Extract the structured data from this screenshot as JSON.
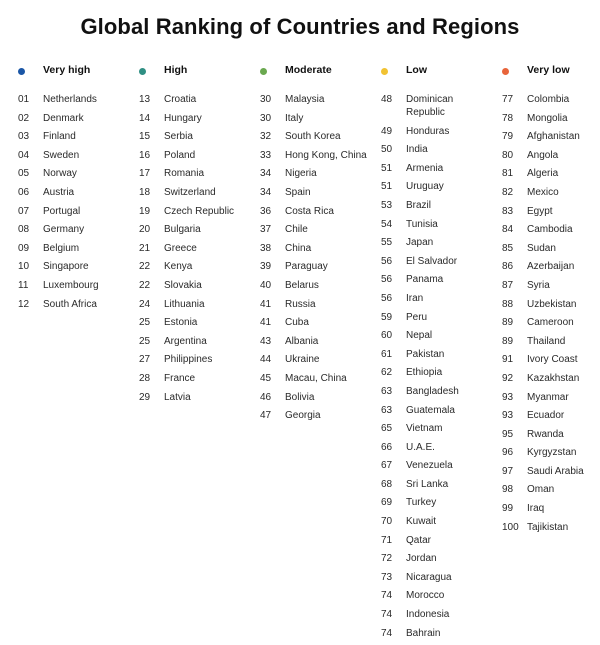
{
  "title": "Global Ranking of Countries and Regions",
  "columns": [
    {
      "label": "Very high",
      "color": "#1a56a6",
      "rows": [
        {
          "rank": "01",
          "name": "Netherlands"
        },
        {
          "rank": "02",
          "name": "Denmark"
        },
        {
          "rank": "03",
          "name": "Finland"
        },
        {
          "rank": "04",
          "name": "Sweden"
        },
        {
          "rank": "05",
          "name": "Norway"
        },
        {
          "rank": "06",
          "name": "Austria"
        },
        {
          "rank": "07",
          "name": "Portugal"
        },
        {
          "rank": "08",
          "name": "Germany"
        },
        {
          "rank": "09",
          "name": "Belgium"
        },
        {
          "rank": "10",
          "name": "Singapore"
        },
        {
          "rank": "11",
          "name": "Luxembourg"
        },
        {
          "rank": "12",
          "name": "South Africa"
        }
      ]
    },
    {
      "label": "High",
      "color": "#2f8f83",
      "rows": [
        {
          "rank": "13",
          "name": "Croatia"
        },
        {
          "rank": "14",
          "name": "Hungary"
        },
        {
          "rank": "15",
          "name": "Serbia"
        },
        {
          "rank": "16",
          "name": "Poland"
        },
        {
          "rank": "17",
          "name": "Romania"
        },
        {
          "rank": "18",
          "name": "Switzerland"
        },
        {
          "rank": "19",
          "name": "Czech Republic"
        },
        {
          "rank": "20",
          "name": "Bulgaria"
        },
        {
          "rank": "21",
          "name": "Greece"
        },
        {
          "rank": "22",
          "name": "Kenya"
        },
        {
          "rank": "22",
          "name": "Slovakia"
        },
        {
          "rank": "24",
          "name": "Lithuania"
        },
        {
          "rank": "25",
          "name": "Estonia"
        },
        {
          "rank": "25",
          "name": "Argentina"
        },
        {
          "rank": "27",
          "name": "Philippines"
        },
        {
          "rank": "28",
          "name": "France"
        },
        {
          "rank": "29",
          "name": "Latvia"
        }
      ]
    },
    {
      "label": "Moderate",
      "color": "#6aa84f",
      "rows": [
        {
          "rank": "30",
          "name": "Malaysia"
        },
        {
          "rank": "30",
          "name": "Italy"
        },
        {
          "rank": "32",
          "name": "South Korea"
        },
        {
          "rank": "33",
          "name": "Hong Kong, China"
        },
        {
          "rank": "34",
          "name": "Nigeria"
        },
        {
          "rank": "34",
          "name": "Spain"
        },
        {
          "rank": "36",
          "name": "Costa Rica"
        },
        {
          "rank": "37",
          "name": "Chile"
        },
        {
          "rank": "38",
          "name": "China"
        },
        {
          "rank": "39",
          "name": "Paraguay"
        },
        {
          "rank": "40",
          "name": "Belarus"
        },
        {
          "rank": "41",
          "name": "Russia"
        },
        {
          "rank": "41",
          "name": "Cuba"
        },
        {
          "rank": "43",
          "name": "Albania"
        },
        {
          "rank": "44",
          "name": "Ukraine"
        },
        {
          "rank": "45",
          "name": "Macau, China"
        },
        {
          "rank": "46",
          "name": "Bolivia"
        },
        {
          "rank": "47",
          "name": "Georgia"
        }
      ]
    },
    {
      "label": "Low",
      "color": "#f1c232",
      "rows": [
        {
          "rank": "48",
          "name": "Dominican Republic"
        },
        {
          "rank": "49",
          "name": "Honduras"
        },
        {
          "rank": "50",
          "name": "India"
        },
        {
          "rank": "51",
          "name": "Armenia"
        },
        {
          "rank": "51",
          "name": "Uruguay"
        },
        {
          "rank": "53",
          "name": "Brazil"
        },
        {
          "rank": "54",
          "name": "Tunisia"
        },
        {
          "rank": "55",
          "name": "Japan"
        },
        {
          "rank": "56",
          "name": "El Salvador"
        },
        {
          "rank": "56",
          "name": "Panama"
        },
        {
          "rank": "56",
          "name": "Iran"
        },
        {
          "rank": "59",
          "name": "Peru"
        },
        {
          "rank": "60",
          "name": "Nepal"
        },
        {
          "rank": "61",
          "name": "Pakistan"
        },
        {
          "rank": "62",
          "name": "Ethiopia"
        },
        {
          "rank": "63",
          "name": "Bangladesh"
        },
        {
          "rank": "63",
          "name": "Guatemala"
        },
        {
          "rank": "65",
          "name": "Vietnam"
        },
        {
          "rank": "66",
          "name": "U.A.E."
        },
        {
          "rank": "67",
          "name": "Venezuela"
        },
        {
          "rank": "68",
          "name": "Sri Lanka"
        },
        {
          "rank": "69",
          "name": "Turkey"
        },
        {
          "rank": "70",
          "name": "Kuwait"
        },
        {
          "rank": "71",
          "name": "Qatar"
        },
        {
          "rank": "72",
          "name": "Jordan"
        },
        {
          "rank": "73",
          "name": "Nicaragua"
        },
        {
          "rank": "74",
          "name": "Morocco"
        },
        {
          "rank": "74",
          "name": "Indonesia"
        },
        {
          "rank": "74",
          "name": "Bahrain"
        }
      ]
    },
    {
      "label": "Very low",
      "color": "#e8643a",
      "rows": [
        {
          "rank": "77",
          "name": "Colombia"
        },
        {
          "rank": "78",
          "name": "Mongolia"
        },
        {
          "rank": "79",
          "name": "Afghanistan"
        },
        {
          "rank": "80",
          "name": "Angola"
        },
        {
          "rank": "81",
          "name": "Algeria"
        },
        {
          "rank": "82",
          "name": "Mexico"
        },
        {
          "rank": "83",
          "name": "Egypt"
        },
        {
          "rank": "84",
          "name": "Cambodia"
        },
        {
          "rank": "85",
          "name": "Sudan"
        },
        {
          "rank": "86",
          "name": "Azerbaijan"
        },
        {
          "rank": "87",
          "name": "Syria"
        },
        {
          "rank": "88",
          "name": "Uzbekistan"
        },
        {
          "rank": "89",
          "name": "Cameroon"
        },
        {
          "rank": "89",
          "name": "Thailand"
        },
        {
          "rank": "91",
          "name": "Ivory Coast"
        },
        {
          "rank": "92",
          "name": "Kazakhstan"
        },
        {
          "rank": "93",
          "name": "Myanmar"
        },
        {
          "rank": "93",
          "name": "Ecuador"
        },
        {
          "rank": "95",
          "name": "Rwanda"
        },
        {
          "rank": "96",
          "name": "Kyrgyzstan"
        },
        {
          "rank": "97",
          "name": "Saudi Arabia"
        },
        {
          "rank": "98",
          "name": "Oman"
        },
        {
          "rank": "99",
          "name": "Iraq"
        },
        {
          "rank": "100",
          "name": "Tajikistan"
        }
      ]
    }
  ]
}
